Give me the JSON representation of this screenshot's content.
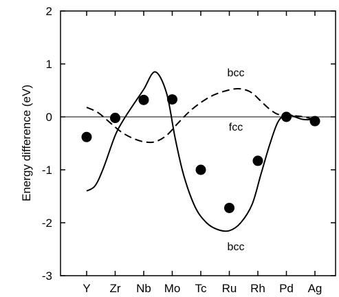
{
  "chart_data": {
    "type": "line",
    "title": "",
    "xlabel": "",
    "ylabel": "Energy difference (eV)",
    "ylim": [
      -3,
      2
    ],
    "yticks": [
      "2",
      "1",
      "0",
      "-1",
      "-2",
      "-3"
    ],
    "categories": [
      "Y",
      "Zr",
      "Nb",
      "Mo",
      "Tc",
      "Ru",
      "Rh",
      "Pd",
      "Ag"
    ],
    "grid": false,
    "legend": "none",
    "annotations": [
      {
        "text": "bcc",
        "x": 5.3,
        "y": 0.8
      },
      {
        "text": "fcc",
        "x": 5.3,
        "y": -0.19
      },
      {
        "text": "bcc",
        "x": 5.3,
        "y": -2.44
      }
    ],
    "series": [
      {
        "style": "solid",
        "x": [
          0,
          0.3,
          0.6,
          1.0,
          1.3,
          1.6,
          2.0,
          2.4,
          2.8,
          3.1,
          3.4,
          3.8,
          4.2,
          4.6,
          5.0,
          5.4,
          5.8,
          6.1,
          6.4,
          6.7,
          7.0,
          7.3,
          7.6,
          8.0
        ],
        "y": [
          -1.4,
          -1.3,
          -0.95,
          -0.35,
          -0.05,
          0.2,
          0.52,
          0.85,
          0.45,
          -0.4,
          -1.1,
          -1.7,
          -2.0,
          -2.13,
          -2.15,
          -2.0,
          -1.65,
          -1.1,
          -0.55,
          -0.1,
          0.05,
          0.0,
          -0.05,
          -0.05
        ]
      },
      {
        "style": "dashed",
        "x": [
          0,
          0.4,
          0.8,
          1.2,
          1.6,
          2.0,
          2.4,
          2.8,
          3.2,
          3.6,
          4.0,
          4.4,
          4.8,
          5.2,
          5.5,
          5.8,
          6.1,
          6.4,
          6.7,
          7.0,
          7.3,
          7.6,
          8.0
        ],
        "y": [
          0.18,
          0.08,
          -0.1,
          -0.28,
          -0.4,
          -0.47,
          -0.47,
          -0.35,
          -0.12,
          0.1,
          0.27,
          0.4,
          0.48,
          0.53,
          0.52,
          0.45,
          0.3,
          0.15,
          0.05,
          0.04,
          0.02,
          0.0,
          -0.05
        ]
      },
      {
        "style": "points",
        "x": [
          0,
          1,
          2,
          3,
          4,
          5,
          6,
          7,
          8
        ],
        "y": [
          -0.38,
          -0.02,
          0.32,
          0.33,
          -1.0,
          -1.72,
          -0.83,
          0.0,
          -0.08
        ]
      }
    ]
  }
}
